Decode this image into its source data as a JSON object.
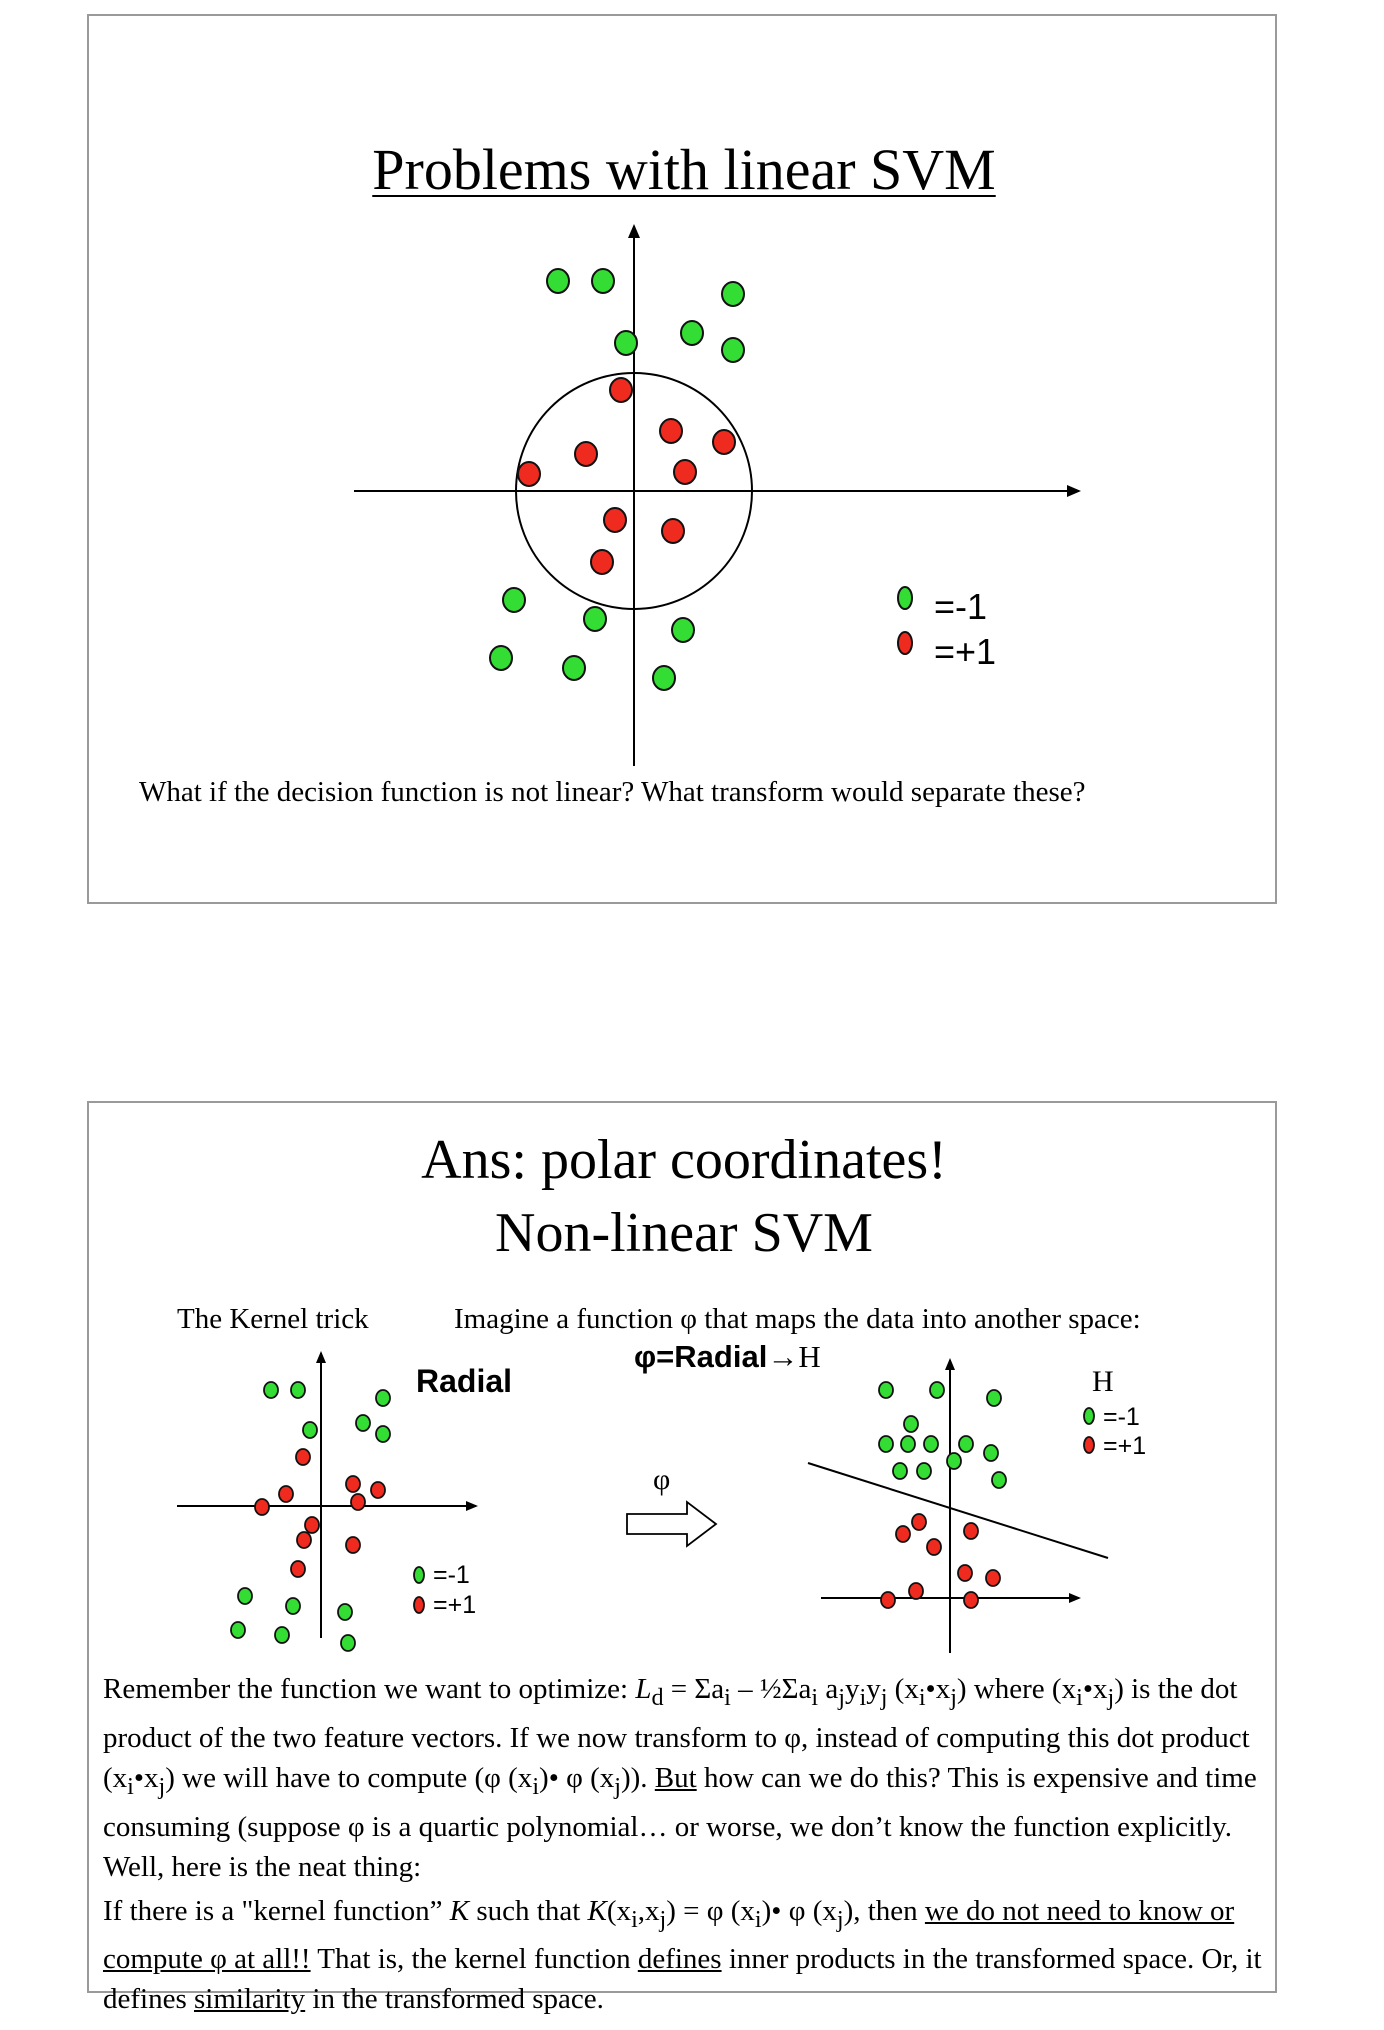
{
  "slide1": {
    "title": "Problems with linear SVM",
    "legend": {
      "neg": "=-1",
      "pos": "=+1"
    },
    "question": "What if the decision function is not linear? What transform would separate these?"
  },
  "slide2": {
    "title_line1": "Ans: polar coordinates!",
    "title_line2": "Non-linear SVM",
    "kernel_trick": "The Kernel trick",
    "imagine": "Imagine a function φ that maps the data into another space:",
    "mapping_bold": "φ=Radial",
    "mapping_arrow": "→H",
    "radial_label": "Radial",
    "h_label": "H",
    "phi_arrow_label": "φ",
    "legend_left": {
      "neg": "=-1",
      "pos": "=+1"
    },
    "legend_right": {
      "neg": "=-1",
      "pos": "=+1"
    },
    "para1": {
      "a": "Remember the function we want to optimize: ",
      "L": "L",
      "Lsub": "d",
      "b": " = ",
      "c": "Σa",
      "c_sub": "i",
      "d": " – ½Σa",
      "d_sub1": "i",
      "d2": " a",
      "d_sub2": "j",
      "d3": "y",
      "d_sub3": "i",
      "d4": "y",
      "d_sub4": "j",
      "e": " (x",
      "e_sub1": "i",
      "e2": "•x",
      "e_sub2": "j",
      "f": ") where (x",
      "f_sub1": "i",
      "f2": "•x",
      "f_sub2": "j",
      "g": ") is the dot product of the two feature vectors. If we now transform to φ, instead of computing this dot product (x",
      "g_sub1": "i",
      "g2": "•x",
      "g_sub2": "j",
      "h": ") we will have to compute (φ (x",
      "h_sub1": "i",
      "h2": ")• φ (x",
      "h_sub2": "j",
      "h3": ")). ",
      "but": "But",
      "j": " how can we do this?  This is expensive and time consuming (suppose φ is a quartic polynomial… or worse, we don’t know the function explicitly.  Well, here is the neat thing:"
    },
    "para2": {
      "a": "If there is a \"kernel function” ",
      "K": "K",
      "b": " such that ",
      "K2": "K",
      "c": "(x",
      "c_sub1": "i",
      "c2": ",x",
      "c_sub2": "j",
      "d": ") = φ (x",
      "d_sub1": "i",
      "d2": ")• φ (x",
      "d_sub2": "j",
      "e": "), then ",
      "u1": "we do not need to know or compute φ at all!!",
      "f": "  That is, the kernel function ",
      "u2": "defines",
      "g": " inner products in the transformed space. Or, it defines ",
      "u3": "similarity",
      "h": " in the transformed space."
    }
  },
  "colors": {
    "green": "#33dd33",
    "red": "#ee2b1e",
    "outline": "#111111"
  }
}
